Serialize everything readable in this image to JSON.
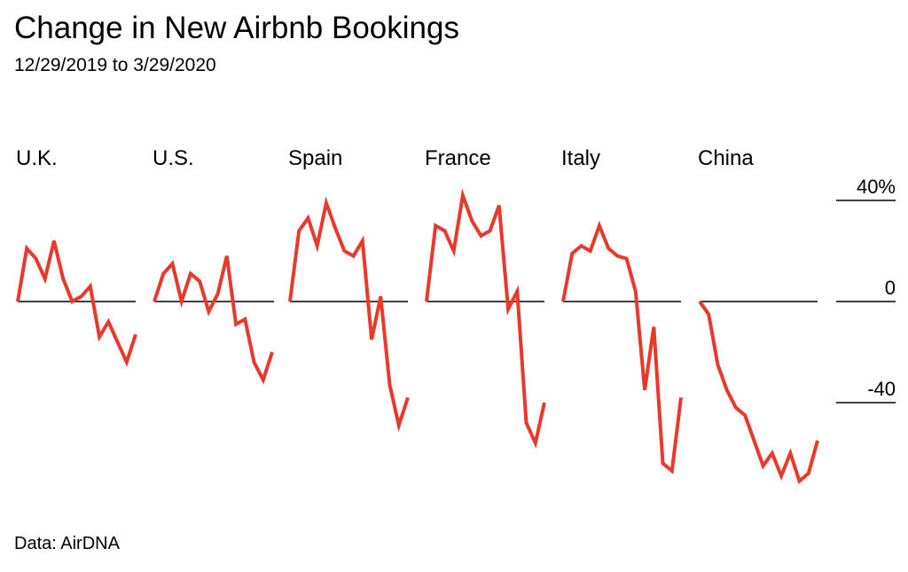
{
  "title": "Change in New Airbnb Bookings",
  "subtitle": "12/29/2019 to 3/29/2020",
  "source": "Data: AirDNA",
  "colors": {
    "line": "#e8392b",
    "baseline": "#000000",
    "text": "#000000"
  },
  "chart_data": {
    "type": "line",
    "layout": "small-multiples",
    "ylim": [
      -55,
      45
    ],
    "yticks": [
      {
        "value": 40,
        "label": "40%"
      },
      {
        "value": 0,
        "label": "0"
      },
      {
        "value": -40,
        "label": "-40"
      }
    ],
    "series": [
      {
        "name": "U.K.",
        "values": [
          0,
          21,
          17,
          9,
          24,
          9,
          0,
          2,
          6,
          -14,
          -8,
          -16,
          -24,
          -13
        ]
      },
      {
        "name": "U.S.",
        "values": [
          0,
          11,
          15,
          0,
          11,
          8,
          -4,
          3,
          18,
          -9,
          -7,
          -24,
          -31,
          -20
        ]
      },
      {
        "name": "Spain",
        "values": [
          0,
          28,
          33,
          22,
          39,
          29,
          20,
          18,
          24,
          -15,
          2,
          -33,
          -49,
          -38
        ]
      },
      {
        "name": "France",
        "values": [
          0,
          30,
          28,
          20,
          42,
          32,
          26,
          28,
          38,
          -3,
          4,
          -48,
          -56,
          -40
        ]
      },
      {
        "name": "Italy",
        "values": [
          0,
          19,
          22,
          20,
          30,
          21,
          18,
          17,
          4,
          -35,
          -10,
          -64,
          -67,
          -38
        ]
      },
      {
        "name": "China",
        "values": [
          0,
          -5,
          -25,
          -35,
          -42,
          -45,
          -55,
          -65,
          -60,
          -69,
          -60,
          -71,
          -68,
          -55
        ]
      }
    ]
  }
}
